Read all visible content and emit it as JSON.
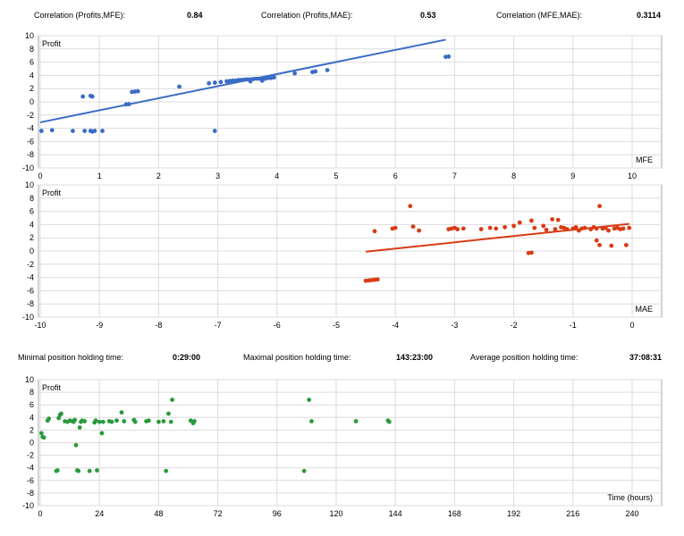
{
  "stats_top": {
    "profits_mfe_label": "Correlation (Profits,MFE):",
    "profits_mfe_value": "0.84",
    "profits_mae_label": "Correlation (Profits,MAE):",
    "profits_mae_value": "0.53",
    "mfe_mae_label": "Correlation (MFE,MAE):",
    "mfe_mae_value": "0.3114"
  },
  "stats_bottom": {
    "min_label": "Minimal position holding time:",
    "min_value": "0:29:00",
    "max_label": "Maximal position holding time:",
    "max_value": "143:23:00",
    "avg_label": "Average position holding time:",
    "avg_value": "37:08:31"
  },
  "chart_data": [
    {
      "id": "mfe",
      "type": "scatter",
      "ylabel": "Profit",
      "xlabel": "MFE",
      "xlim": [
        0,
        10
      ],
      "ylim": [
        -10,
        10
      ],
      "xticks": [
        0,
        1,
        2,
        3,
        4,
        5,
        6,
        7,
        8,
        9,
        10
      ],
      "yticks": [
        10,
        8,
        6,
        4,
        2,
        0,
        -2,
        -4,
        -6,
        -8,
        -10
      ],
      "grid": true,
      "color": "#3a6cc6",
      "trendline": [
        [
          0,
          -3.1
        ],
        [
          6.85,
          9.4
        ]
      ],
      "points": [
        [
          0.02,
          -4.4
        ],
        [
          0.2,
          -4.3
        ],
        [
          0.55,
          -4.4
        ],
        [
          0.75,
          -4.4
        ],
        [
          0.85,
          -4.4
        ],
        [
          0.88,
          -4.5
        ],
        [
          0.92,
          -4.4
        ],
        [
          1.05,
          -4.4
        ],
        [
          0.72,
          0.8
        ],
        [
          0.85,
          0.9
        ],
        [
          0.88,
          0.8
        ],
        [
          1.45,
          -0.4
        ],
        [
          1.5,
          -0.35
        ],
        [
          1.55,
          1.5
        ],
        [
          1.6,
          1.55
        ],
        [
          1.65,
          1.6
        ],
        [
          2.35,
          2.3
        ],
        [
          2.85,
          2.8
        ],
        [
          2.95,
          2.9
        ],
        [
          3.05,
          3.0
        ],
        [
          2.95,
          -4.4
        ],
        [
          3.15,
          3.1
        ],
        [
          3.2,
          3.15
        ],
        [
          3.25,
          3.2
        ],
        [
          3.3,
          3.2
        ],
        [
          3.35,
          3.3
        ],
        [
          3.4,
          3.3
        ],
        [
          3.45,
          3.35
        ],
        [
          3.5,
          3.4
        ],
        [
          3.55,
          3.4
        ],
        [
          3.6,
          3.45
        ],
        [
          3.65,
          3.5
        ],
        [
          3.7,
          3.5
        ],
        [
          3.75,
          3.55
        ],
        [
          3.85,
          3.6
        ],
        [
          3.9,
          3.6
        ],
        [
          3.95,
          3.7
        ],
        [
          3.55,
          3.1
        ],
        [
          3.75,
          3.2
        ],
        [
          3.8,
          3.5
        ],
        [
          4.3,
          4.3
        ],
        [
          4.6,
          4.5
        ],
        [
          4.65,
          4.6
        ],
        [
          4.85,
          4.8
        ],
        [
          6.85,
          6.8
        ],
        [
          6.9,
          6.85
        ]
      ]
    },
    {
      "id": "mae",
      "type": "scatter",
      "ylabel": "Profit",
      "xlabel": "MAE",
      "xlim": [
        -10,
        0
      ],
      "ylim": [
        -10,
        10
      ],
      "xticks": [
        -10,
        -9,
        -8,
        -7,
        -6,
        -5,
        -4,
        -3,
        -2,
        -1,
        0
      ],
      "yticks": [
        10,
        8,
        6,
        4,
        2,
        0,
        -2,
        -4,
        -6,
        -8,
        -10
      ],
      "grid": true,
      "color": "#d83c14",
      "trendline": [
        [
          -4.5,
          -0.1
        ],
        [
          -0.05,
          4.1
        ]
      ],
      "points": [
        [
          -4.5,
          -4.5
        ],
        [
          -4.45,
          -4.45
        ],
        [
          -4.4,
          -4.4
        ],
        [
          -4.35,
          -4.35
        ],
        [
          -4.3,
          -4.3
        ],
        [
          -4.35,
          3.0
        ],
        [
          -4.05,
          3.4
        ],
        [
          -4.0,
          3.5
        ],
        [
          -3.75,
          6.8
        ],
        [
          -3.7,
          3.7
        ],
        [
          -3.6,
          3.1
        ],
        [
          -3.1,
          3.3
        ],
        [
          -3.05,
          3.4
        ],
        [
          -3.0,
          3.5
        ],
        [
          -2.95,
          3.3
        ],
        [
          -2.85,
          3.4
        ],
        [
          -2.55,
          3.3
        ],
        [
          -2.4,
          3.5
        ],
        [
          -2.3,
          3.4
        ],
        [
          -2.15,
          3.6
        ],
        [
          -2.0,
          3.8
        ],
        [
          -1.9,
          4.3
        ],
        [
          -1.7,
          4.6
        ],
        [
          -1.75,
          -0.3
        ],
        [
          -1.7,
          -0.25
        ],
        [
          -1.65,
          3.5
        ],
        [
          -1.5,
          3.8
        ],
        [
          -1.45,
          3.2
        ],
        [
          -1.3,
          3.3
        ],
        [
          -1.35,
          4.8
        ],
        [
          -1.25,
          4.7
        ],
        [
          -1.2,
          3.6
        ],
        [
          -1.15,
          3.5
        ],
        [
          -1.1,
          3.3
        ],
        [
          -1.0,
          3.4
        ],
        [
          -0.95,
          3.6
        ],
        [
          -0.9,
          3.1
        ],
        [
          -0.85,
          3.4
        ],
        [
          -0.8,
          3.5
        ],
        [
          -0.7,
          3.3
        ],
        [
          -0.65,
          3.6
        ],
        [
          -0.6,
          3.4
        ],
        [
          -0.55,
          6.8
        ],
        [
          -0.5,
          3.4
        ],
        [
          -0.45,
          3.5
        ],
        [
          -0.4,
          3.1
        ],
        [
          -0.35,
          0.8
        ],
        [
          -0.3,
          3.4
        ],
        [
          -0.25,
          3.5
        ],
        [
          -0.2,
          3.3
        ],
        [
          -0.15,
          3.4
        ],
        [
          -0.1,
          0.9
        ],
        [
          -0.05,
          3.5
        ],
        [
          -0.6,
          1.6
        ],
        [
          -0.55,
          0.9
        ]
      ]
    },
    {
      "id": "time",
      "type": "scatter",
      "ylabel": "Profit",
      "xlabel": "Time (hours)",
      "xlim": [
        0,
        240
      ],
      "ylim": [
        -10,
        10
      ],
      "xticks": [
        0,
        24,
        48,
        72,
        96,
        120,
        144,
        168,
        192,
        216,
        240
      ],
      "yticks": [
        10,
        8,
        6,
        4,
        2,
        0,
        -2,
        -4,
        -6,
        -8,
        -10
      ],
      "grid": true,
      "color": "#2a9a3c",
      "points": [
        [
          0.5,
          1.5
        ],
        [
          1,
          0.9
        ],
        [
          1.5,
          0.8
        ],
        [
          3,
          3.5
        ],
        [
          3.5,
          3.8
        ],
        [
          6.5,
          -4.5
        ],
        [
          7,
          -4.4
        ],
        [
          7.5,
          3.9
        ],
        [
          8,
          4.4
        ],
        [
          8.5,
          4.6
        ],
        [
          10,
          3.4
        ],
        [
          11,
          3.3
        ],
        [
          12,
          3.5
        ],
        [
          13,
          3.4
        ],
        [
          13.5,
          3.3
        ],
        [
          14,
          3.6
        ],
        [
          14.5,
          -0.4
        ],
        [
          15,
          -4.4
        ],
        [
          15.5,
          -4.5
        ],
        [
          16,
          2.4
        ],
        [
          16.5,
          3.3
        ],
        [
          17,
          3.5
        ],
        [
          18,
          3.4
        ],
        [
          20,
          -4.5
        ],
        [
          22,
          3.2
        ],
        [
          22.5,
          3.5
        ],
        [
          23,
          -4.4
        ],
        [
          24,
          3.3
        ],
        [
          25,
          1.5
        ],
        [
          25.5,
          3.3
        ],
        [
          28,
          3.4
        ],
        [
          29,
          3.3
        ],
        [
          31,
          3.5
        ],
        [
          33,
          4.8
        ],
        [
          34,
          3.4
        ],
        [
          38,
          3.6
        ],
        [
          38.5,
          3.3
        ],
        [
          43,
          3.4
        ],
        [
          44,
          3.5
        ],
        [
          48,
          3.3
        ],
        [
          50,
          3.4
        ],
        [
          51,
          -4.5
        ],
        [
          52,
          4.6
        ],
        [
          53,
          3.3
        ],
        [
          53.5,
          6.8
        ],
        [
          61,
          3.5
        ],
        [
          62,
          3.1
        ],
        [
          62.5,
          3.4
        ],
        [
          107,
          -4.5
        ],
        [
          109,
          6.8
        ],
        [
          110,
          3.4
        ],
        [
          128,
          3.4
        ],
        [
          141,
          3.5
        ],
        [
          141.5,
          3.3
        ]
      ]
    }
  ]
}
